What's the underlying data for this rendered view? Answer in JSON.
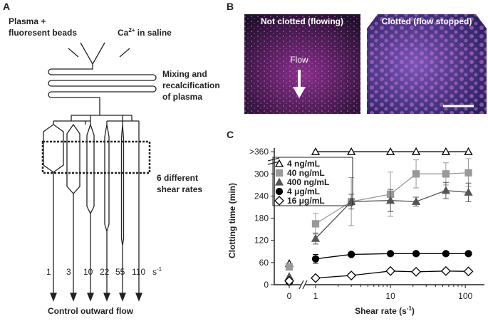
{
  "panel_a": {
    "label": "A",
    "inlet_left": "Plasma +\nfluoresent beads",
    "inlet_right": {
      "base": "Ca",
      "sup": "2+",
      "rest": " in saline"
    },
    "mixing": "Mixing and\nrecalcification\nof plasma",
    "region": "6 different\nshear rates",
    "shear_rates": [
      "1",
      "3",
      "10",
      "22",
      "55",
      "110"
    ],
    "shear_unit": {
      "base": " s",
      "sup": "-1"
    },
    "outlet": "Control outward flow"
  },
  "panel_b": {
    "label": "B",
    "left_title": "Not clotted (flowing)",
    "right_title": "Clotted (flow stopped)",
    "arrow_label": "Flow"
  },
  "chart_data": {
    "type": "scatter",
    "label": "C",
    "x_title": {
      "base": "Shear rate (s",
      "sup": "-1",
      "rest": ")"
    },
    "y_title": "Clotting time (min)",
    "log_x": true,
    "x": [
      1,
      3,
      10,
      22,
      55,
      110
    ],
    "control_tick": 0,
    "xlim": [
      0.72,
      180
    ],
    "xticks": [
      1,
      10,
      100
    ],
    "ylim": [
      0,
      370
    ],
    "yticks": [
      0,
      60,
      120,
      180,
      240,
      300,
      {
        "value": 360,
        "label": ">360"
      }
    ],
    "series": [
      {
        "name": "4 ng/mL",
        "color": "#000000",
        "marker": "triangle-open",
        "control": 57,
        "values": [
          360,
          360,
          360,
          360,
          360,
          360
        ]
      },
      {
        "name": "40 ng/mL",
        "color": "#999999",
        "marker": "square",
        "control": 48,
        "values": [
          165,
          225,
          245,
          300,
          300,
          303
        ],
        "errors": [
          28,
          65,
          60,
          38,
          30,
          38
        ]
      },
      {
        "name": "400 ng/mL",
        "color": "#555555",
        "marker": "triangle",
        "control": 22,
        "values": [
          125,
          225,
          228,
          225,
          255,
          250
        ],
        "errors": [
          15,
          20,
          30,
          12,
          22,
          25
        ]
      },
      {
        "name": "4 μg/mL",
        "color": "#000000",
        "marker": "circle",
        "control": 7,
        "values": [
          70,
          82,
          84,
          84,
          84,
          84
        ],
        "errors": [
          12,
          3,
          2,
          2,
          2,
          2
        ]
      },
      {
        "name": "16 μg/mL",
        "color": "#000000",
        "marker": "diamond-open",
        "control": 10,
        "values": [
          18,
          25,
          37,
          35,
          37,
          36
        ]
      }
    ]
  }
}
